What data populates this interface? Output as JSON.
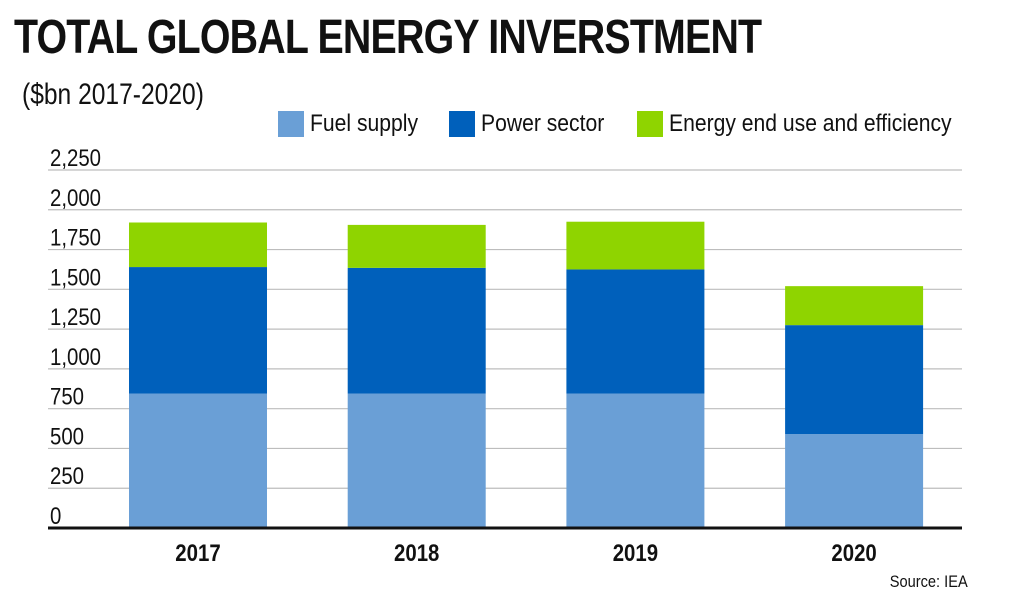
{
  "chart_data": {
    "type": "bar",
    "stacked": true,
    "title": "TOTAL GLOBAL ENERGY INVERSTMENT",
    "subtitle": "($bn 2017-2020)",
    "categories": [
      "2017",
      "2018",
      "2019",
      "2020"
    ],
    "series": [
      {
        "name": "Fuel supply",
        "color": "#6a9fd6",
        "values": [
          845,
          845,
          845,
          590
        ]
      },
      {
        "name": "Power sector",
        "color": "#0060bb",
        "values": [
          795,
          790,
          780,
          685
        ]
      },
      {
        "name": "Energy end use and efficiency",
        "color": "#8fd400",
        "values": [
          280,
          270,
          300,
          245
        ]
      }
    ],
    "yticks": [
      "0",
      "250",
      "500",
      "750",
      "1,000",
      "1,250",
      "1,500",
      "1,750",
      "2,000",
      "2,250"
    ],
    "ylim": [
      0,
      2250
    ],
    "grid": true,
    "legend": "top-right",
    "source": "Source: IEA"
  }
}
